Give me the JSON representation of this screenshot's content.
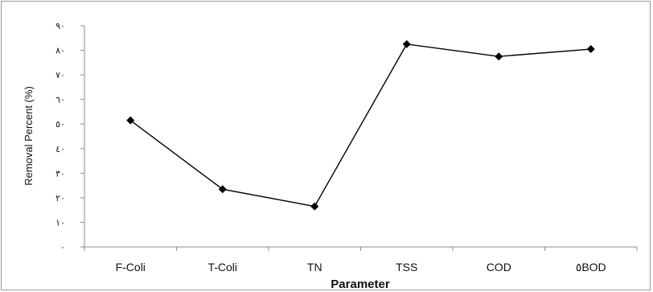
{
  "chart_data": {
    "type": "line",
    "title": "",
    "xlabel": "Parameter",
    "ylabel": "Removal Percent (%)",
    "categories": [
      "F-Coli",
      "T-Coli",
      "TN",
      "TSS",
      "COD",
      "٥BOD"
    ],
    "series": [
      {
        "values": [
          51.5,
          23.5,
          16.5,
          82.5,
          77.5,
          80.5
        ]
      }
    ],
    "ylim": [
      0,
      90
    ],
    "yticks": [
      0,
      10,
      20,
      30,
      40,
      50,
      60,
      70,
      80,
      90
    ],
    "ytick_labels": [
      "٠",
      "١٠",
      "٢٠",
      "٣٠",
      "٤٠",
      "٥٠",
      "٦٠",
      "٧٠",
      "٨٠",
      "٩٠"
    ],
    "grid": false,
    "legend": "none",
    "colors": {
      "line": "#000000",
      "marker": "#000000",
      "axis": "#8c8c8c",
      "frame": "#9a9a9a"
    }
  }
}
